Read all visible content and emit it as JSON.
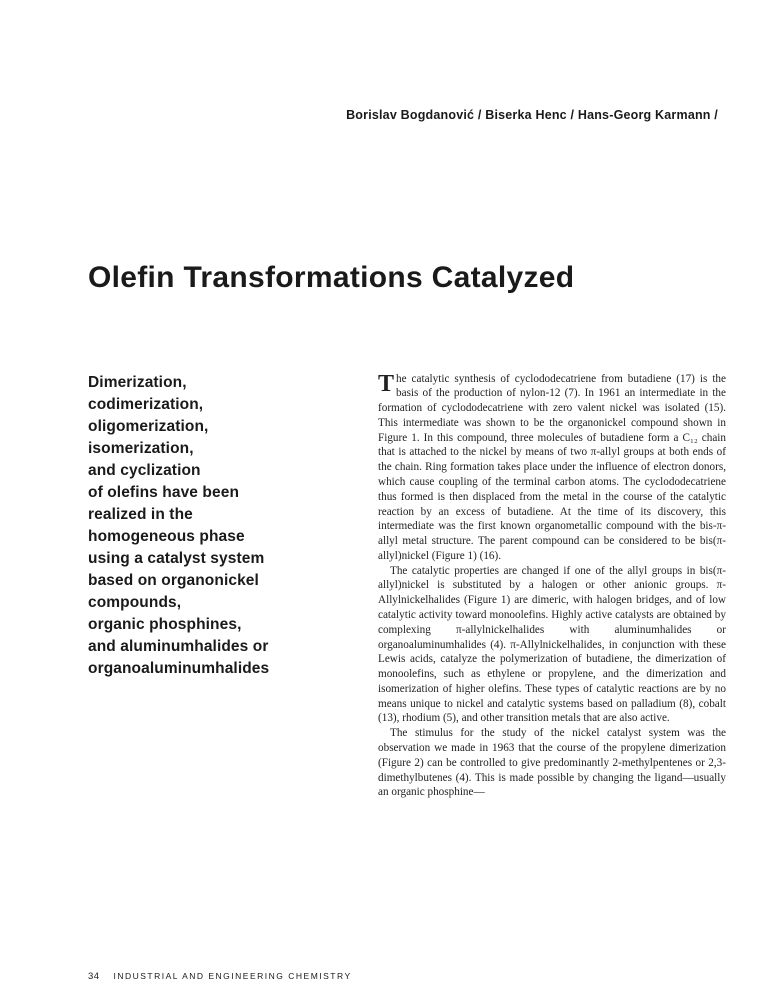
{
  "authors": "Borislav Bogdanović / Biserka Henc / Hans-Georg Karmann /",
  "title": "Olefin Transformations Catalyzed",
  "subhead": "Dimerization,\ncodimerization,\noligomerization,\nisomerization,\nand cyclization\nof olefins have been\nrealized in the\nhomogeneous phase\nusing a catalyst system\nbased on organonickel\ncompounds,\norganic phosphines,\nand aluminumhalides or\norganoaluminumhalides",
  "body": {
    "p1_dropcap": "T",
    "p1": "he catalytic synthesis of cyclododecatriene from buta­diene (17) is the basis of the production of nylon-12 (7). In 1961 an intermediate in the formation of cyclo­dodecatriene with zero valent nickel was isolated (15). This intermediate was shown to be the organonickel com­pound shown in Figure 1. In this compound, three molecules of butadiene form a C₁₂ chain that is attached to the nickel by means of two π-allyl groups at both ends of the chain. Ring formation takes place under the influ­ence of electron donors, which cause coupling of the terminal carbon atoms. The cyclododecatriene thus formed is then displaced from the metal in the course of the catalytic reaction by an excess of butadiene. At the time of its discovery, this intermediate was the first known organometallic compound with the bis-π-allyl metal structure. The parent compound can be considered to be bis(π-allyl)nickel (Figure 1) (16).",
    "p2": "The catalytic properties are changed if one of the allyl groups in bis(π-allyl)nickel is substituted by a halogen or other anionic groups. π-Allylnickelhalides (Figure 1) are dimeric, with halogen bridges, and of low catalytic activity toward monoolefins. Highly active catalysts are obtained by complexing π-allylnickelhalides with aluminumhalides or organoaluminumhalides (4). π-Allylnickelhalides, in conjunction with these Lewis acids, catalyze the polymerization of butadiene, the dimeriza­tion of monoolefins, such as ethylene or propylene, and the dimerization and isomerization of higher olefins. These types of catalytic reactions are by no means unique to nickel and catalytic systems based on palladium (8), cobalt (13), rhodium (5), and other transition metals that are also active.",
    "p3": "The stimulus for the study of the nickel catalyst sys­tem was the observation we made in 1963 that the course of the propylene dimerization (Figure 2) can be controlled to give predominantly 2-methylpentenes or 2,3-dimethylbutenes (4). This is made possible by changing the ligand—usually an organic phosphine—"
  },
  "footer": {
    "page": "34",
    "journal": "INDUSTRIAL AND ENGINEERING CHEMISTRY"
  },
  "colors": {
    "text": "#1a1a1a",
    "background": "#ffffff"
  },
  "typography": {
    "authors_fontsize": 12.5,
    "title_fontsize": 30,
    "subhead_fontsize": 15.5,
    "body_fontsize": 11.2,
    "footer_fontsize": 8.5
  }
}
